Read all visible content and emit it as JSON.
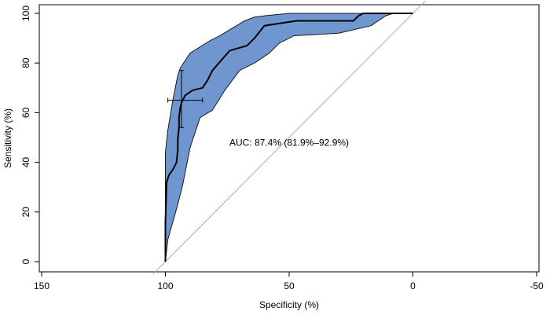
{
  "chart_data": {
    "type": "line",
    "title": "",
    "xlabel": "Specificity (%)",
    "ylabel": "Sensitivity (%)",
    "xlim": [
      150,
      -50
    ],
    "ylim": [
      0,
      100
    ],
    "x_reversed": true,
    "grid": false,
    "x_ticks": [
      150,
      100,
      50,
      0,
      -50
    ],
    "x_tick_labels": [
      "150",
      "100",
      "50",
      "0",
      "-50"
    ],
    "y_ticks": [
      0,
      20,
      40,
      60,
      80,
      100
    ],
    "y_tick_labels": [
      "0",
      "20",
      "40",
      "60",
      "80",
      "100"
    ],
    "annotation": "AUC: 87.4% (81.9%–92.9%)",
    "annotation_at": [
      50,
      48
    ],
    "colors": {
      "band": "#7096d0",
      "band_edge": "#1a1a1a",
      "curve": "#000000",
      "diagonal": "#aaaaaa"
    },
    "reference_line": {
      "x": [
        100,
        0
      ],
      "y": [
        0,
        100
      ]
    },
    "roc_curve": {
      "specificity": [
        100,
        100,
        99.5,
        98.5,
        97,
        95.5,
        95,
        95,
        94.5,
        94.5,
        94,
        93.5,
        93,
        92,
        89,
        85,
        83,
        81,
        74,
        67,
        64,
        60,
        47,
        24,
        22,
        20,
        15,
        0
      ],
      "sensitivity": [
        0,
        16,
        32,
        35,
        37,
        40,
        45,
        49,
        54,
        58,
        62,
        64,
        65,
        67,
        69,
        70,
        73,
        77,
        85,
        87,
        90,
        95,
        97,
        97,
        99,
        100,
        100,
        100
      ]
    },
    "ci_band": {
      "upper": {
        "specificity": [
          100,
          100,
          99,
          97,
          95,
          94,
          90,
          82,
          78,
          73,
          68,
          64,
          60,
          50,
          0
        ],
        "sensitivity": [
          0,
          44,
          53,
          65,
          75,
          78,
          84,
          89,
          91,
          94,
          97,
          98.5,
          99,
          100,
          100
        ]
      },
      "lower": {
        "specificity": [
          100,
          99,
          97,
          95,
          93,
          90,
          86,
          81,
          76,
          70,
          64,
          58,
          54,
          48,
          30,
          17,
          11,
          8,
          0
        ],
        "sensitivity": [
          0,
          9,
          16,
          23,
          31,
          46,
          58,
          61,
          69,
          77,
          80,
          84,
          88,
          91,
          92,
          95,
          99,
          100,
          100
        ]
      }
    },
    "threshold_point": {
      "specificity": 93.5,
      "sensitivity": 65,
      "specificity_ci": [
        85,
        99
      ],
      "sensitivity_ci": [
        54,
        77
      ]
    }
  }
}
